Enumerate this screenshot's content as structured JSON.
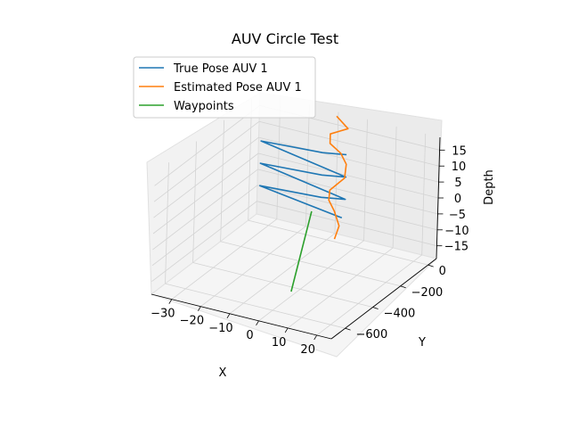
{
  "chart_data": {
    "type": "line",
    "projection": "3d",
    "title": "AUV Circle Test",
    "xlabel": "X",
    "ylabel": "Y",
    "zlabel": "Depth",
    "xlim": [
      -37,
      25
    ],
    "ylim": [
      -700,
      60
    ],
    "zlim": [
      -19,
      19
    ],
    "x_ticks": [
      -30,
      -20,
      -10,
      0,
      10,
      20
    ],
    "y_ticks": [
      0,
      -200,
      -400,
      -600
    ],
    "z_ticks": [
      15,
      10,
      5,
      0,
      -5,
      -10,
      -15
    ],
    "grid": true,
    "legend_position": "top-left",
    "series": [
      {
        "name": "True Pose AUV 1",
        "color": "#1f77b4",
        "points": [
          {
            "x": -5,
            "y": 0,
            "z": -11
          },
          {
            "x": -32,
            "y": -30,
            "z": -6
          },
          {
            "x": -12,
            "y": -5,
            "z": -6
          },
          {
            "x": -4,
            "y": 0,
            "z": -5
          },
          {
            "x": -32,
            "y": -30,
            "z": 1
          },
          {
            "x": -12,
            "y": -5,
            "z": 1
          },
          {
            "x": -4,
            "y": 0,
            "z": 2
          },
          {
            "x": -32,
            "y": -30,
            "z": 8
          },
          {
            "x": -12,
            "y": -5,
            "z": 8
          },
          {
            "x": -4,
            "y": 0,
            "z": 9
          }
        ]
      },
      {
        "name": "Estimated Pose AUV 1",
        "color": "#ff7f0e",
        "points": [
          {
            "x": -5,
            "y": -50,
            "z": -16
          },
          {
            "x": -4,
            "y": -40,
            "z": -12
          },
          {
            "x": -6,
            "y": -35,
            "z": -8
          },
          {
            "x": -8,
            "y": -35,
            "z": -5
          },
          {
            "x": -8,
            "y": -30,
            "z": -2
          },
          {
            "x": -4,
            "y": -10,
            "z": 2
          },
          {
            "x": -4,
            "y": 0,
            "z": 6
          },
          {
            "x": -6,
            "y": 0,
            "z": 9
          },
          {
            "x": -10,
            "y": 5,
            "z": 11
          },
          {
            "x": -10,
            "y": 5,
            "z": 14
          },
          {
            "x": -4,
            "y": 5,
            "z": 17
          },
          {
            "x": -8,
            "y": 5,
            "z": 20
          }
        ]
      },
      {
        "name": "Waypoints",
        "color": "#2ca02c",
        "points": [
          {
            "x": -14,
            "y": -30,
            "z": -10
          },
          {
            "x": 8,
            "y": -640,
            "z": -10
          }
        ]
      }
    ]
  }
}
